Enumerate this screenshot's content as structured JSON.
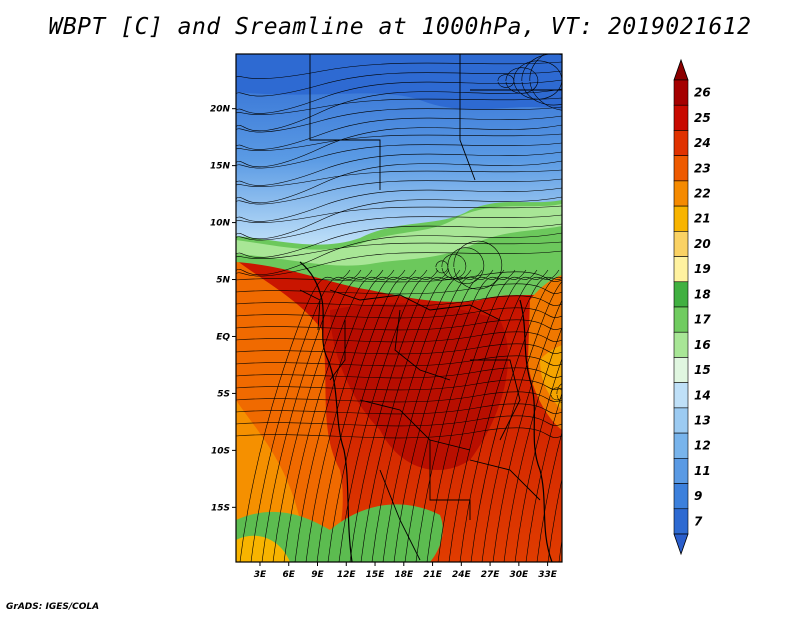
{
  "title": "WBPT [C] and Sreamline at 1000hPa, VT: 2019021612",
  "credit": "GrADS: IGES/COLA",
  "map": {
    "lon_labels": [
      "3E",
      "6E",
      "9E",
      "12E",
      "15E",
      "18E",
      "21E",
      "24E",
      "27E",
      "30E",
      "33E"
    ],
    "lon_values": [
      3,
      6,
      9,
      12,
      15,
      18,
      21,
      24,
      27,
      30,
      33
    ],
    "lat_labels": [
      "20N",
      "15N",
      "10N",
      "5N",
      "EQ",
      "5S",
      "10S",
      "15S"
    ],
    "lat_values": [
      20,
      15,
      10,
      5,
      0,
      -5,
      -10,
      -15
    ],
    "lon_range": [
      0.5,
      34.5
    ],
    "lat_range": [
      -19.8,
      24.8
    ]
  },
  "colorbar": {
    "labels": [
      "26",
      "25",
      "24",
      "23",
      "22",
      "21",
      "20",
      "19",
      "18",
      "17",
      "16",
      "15",
      "14",
      "13",
      "12",
      "11",
      "9",
      "7"
    ],
    "colors": [
      "#a50000",
      "#c80a00",
      "#e03200",
      "#ee5a00",
      "#f58a00",
      "#f8b400",
      "#fad264",
      "#fff2a0",
      "#40b040",
      "#70cc60",
      "#a8e696",
      "#e0f6e0",
      "#bfe0f8",
      "#9ccbf2",
      "#78b4ec",
      "#5a9ae4",
      "#3c80dc",
      "#2e6ad2"
    ],
    "top_arrow_color": "#8c0000",
    "bottom_arrow_color": "#2a5ecc"
  }
}
